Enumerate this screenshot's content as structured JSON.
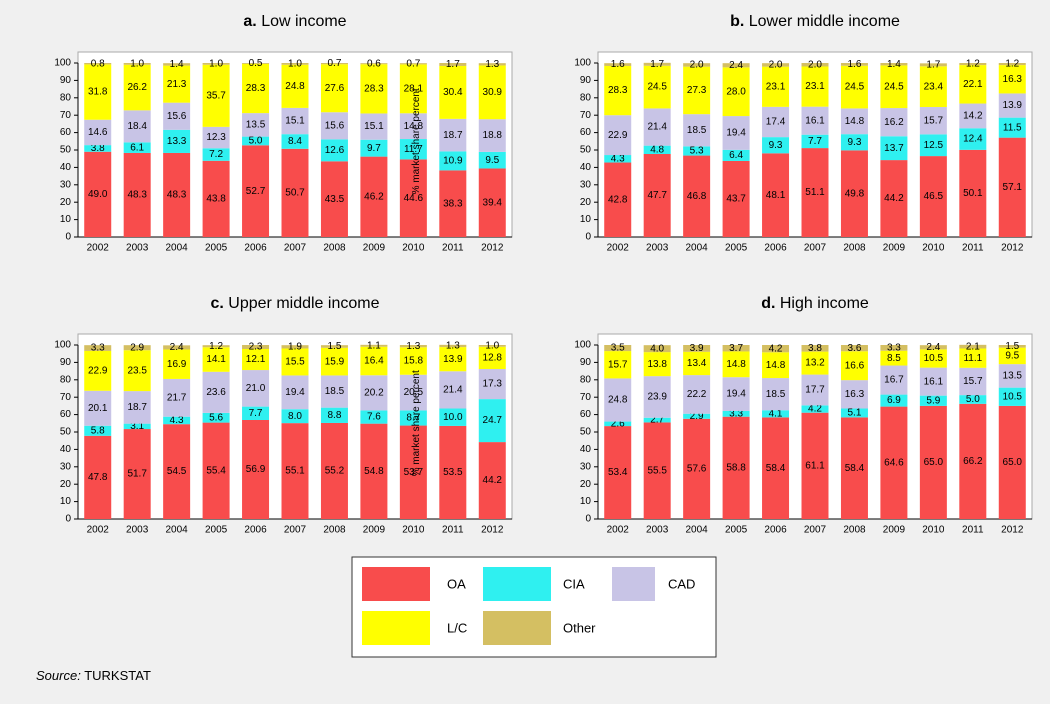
{
  "chart_data": [
    {
      "type": "stacked_bar",
      "panel": "a.",
      "title": "Low income",
      "ylabel": "% market share percent",
      "categories": [
        "2002",
        "2003",
        "2004",
        "2005",
        "2006",
        "2007",
        "2008",
        "2009",
        "2010",
        "2011",
        "2012"
      ],
      "ylim": [
        0,
        100
      ],
      "yticks": [
        0,
        10,
        20,
        30,
        40,
        50,
        60,
        70,
        80,
        90,
        100
      ],
      "series": [
        {
          "name": "OA",
          "color": "#f84c4c",
          "values": [
            49.0,
            48.3,
            48.3,
            43.8,
            52.7,
            50.7,
            43.5,
            46.2,
            44.6,
            38.3,
            39.4
          ],
          "value_labels": [
            "49.0",
            "48.3",
            "48.3",
            "43.8",
            "52.7",
            "50.7",
            "43.5",
            "46.2",
            "44.6",
            "38.3",
            "39.4"
          ]
        },
        {
          "name": "CIA",
          "color": "#2ff0f0",
          "values": [
            3.8,
            6.1,
            13.3,
            7.2,
            5.0,
            8.4,
            12.6,
            9.7,
            11.7,
            10.9,
            9.5
          ],
          "value_labels": [
            "3.8",
            "6.1",
            "13.3",
            "7.2",
            "5.0",
            "8.4",
            "12.6",
            "9.7",
            "11.7",
            "10.9",
            "9.5"
          ]
        },
        {
          "name": "CAD",
          "color": "#c8c4e6",
          "values": [
            14.6,
            18.4,
            15.6,
            12.3,
            13.5,
            15.1,
            15.6,
            15.1,
            14.8,
            18.7,
            18.8
          ],
          "value_labels": [
            "14.6",
            "18.4",
            "15.6",
            "12.3",
            "13.5",
            "15.1",
            "15.6",
            "15.1",
            "14.8",
            "18.7",
            "18.8"
          ]
        },
        {
          "name": "L/C",
          "color": "#ffff00",
          "values": [
            31.8,
            26.2,
            21.3,
            35.7,
            28.3,
            24.8,
            27.6,
            28.3,
            28.1,
            30.4,
            30.9
          ],
          "value_labels": [
            "31.8",
            "26.2",
            "21.3",
            "35.7",
            "28.3",
            "24.8",
            "27.6",
            "28.3",
            "28.1",
            "30.4",
            "30.9"
          ]
        },
        {
          "name": "Other",
          "color": "#d4bf62",
          "values": [
            0.8,
            1.0,
            1.4,
            1.0,
            0.5,
            1.0,
            0.7,
            0.6,
            0.7,
            1.7,
            1.3
          ],
          "value_labels": [
            "0.8",
            "1.0",
            "1.4",
            "1.0",
            "0.5",
            "1.0",
            "0.7",
            "0.6",
            "0.7",
            "1.7",
            "1.3"
          ]
        }
      ]
    },
    {
      "type": "stacked_bar",
      "panel": "b.",
      "title": "Lower middle income",
      "categories": [
        "2002",
        "2003",
        "2004",
        "2005",
        "2006",
        "2007",
        "2008",
        "2009",
        "2010",
        "2011",
        "2012"
      ],
      "ylim": [
        0,
        100
      ],
      "yticks": [
        0,
        10,
        20,
        30,
        40,
        50,
        60,
        70,
        80,
        90,
        100
      ],
      "series": [
        {
          "name": "OA",
          "color": "#f84c4c",
          "values": [
            42.8,
            47.7,
            46.8,
            43.7,
            48.1,
            51.1,
            49.8,
            44.2,
            46.5,
            50.1,
            57.1
          ],
          "value_labels": [
            "42.8",
            "47.7",
            "46.8",
            "43.7",
            "48.1",
            "51.1",
            "49.8",
            "44.2",
            "46.5",
            "50.1",
            "57.1"
          ]
        },
        {
          "name": "CIA",
          "color": "#2ff0f0",
          "values": [
            4.3,
            4.8,
            5.3,
            6.4,
            9.3,
            7.7,
            9.3,
            13.7,
            12.5,
            12.4,
            11.5
          ],
          "value_labels": [
            "4.3",
            "4.8",
            "5.3",
            "6.4",
            "9.3",
            "7.7",
            "9.3",
            "13.7",
            "12.5",
            "12.4",
            "11.5"
          ]
        },
        {
          "name": "CAD",
          "color": "#c8c4e6",
          "values": [
            22.9,
            21.4,
            18.5,
            19.4,
            17.4,
            16.1,
            14.8,
            16.2,
            15.7,
            14.2,
            13.9
          ],
          "value_labels": [
            "22.9",
            "21.4",
            "18.5",
            "19.4",
            "17.4",
            "16.1",
            "14.8",
            "16.2",
            "15.7",
            "14.2",
            "13.9"
          ]
        },
        {
          "name": "L/C",
          "color": "#ffff00",
          "values": [
            28.3,
            24.5,
            27.3,
            28.0,
            23.1,
            23.1,
            24.5,
            24.5,
            23.4,
            22.1,
            16.3
          ],
          "value_labels": [
            "28.3",
            "24.5",
            "27.3",
            "28.0",
            "23.1",
            "23.1",
            "24.5",
            "24.5",
            "23.4",
            "22.1",
            "16.3"
          ]
        },
        {
          "name": "Other",
          "color": "#d4bf62",
          "values": [
            1.6,
            1.7,
            2.0,
            2.4,
            2.0,
            2.0,
            1.6,
            1.4,
            1.7,
            1.2,
            1.2
          ],
          "value_labels": [
            "1.6",
            "1.7",
            "2.0",
            "2.4",
            "2.0",
            "2.0",
            "1.6",
            "1.4",
            "1.7",
            "1.2",
            "1.2"
          ]
        }
      ]
    },
    {
      "type": "stacked_bar",
      "panel": "c.",
      "title": "Upper middle income",
      "ylabel": "% market share percent",
      "categories": [
        "2002",
        "2003",
        "2004",
        "2005",
        "2006",
        "2007",
        "2008",
        "2009",
        "2010",
        "2011",
        "2012"
      ],
      "ylim": [
        0,
        100
      ],
      "yticks": [
        0,
        10,
        20,
        30,
        40,
        50,
        60,
        70,
        80,
        90,
        100
      ],
      "series": [
        {
          "name": "OA",
          "color": "#f84c4c",
          "values": [
            47.8,
            51.7,
            54.5,
            55.4,
            56.9,
            55.1,
            55.2,
            54.8,
            53.7,
            53.5,
            44.2
          ],
          "value_labels": [
            "47.8",
            "51.7",
            "54.5",
            "55.4",
            "56.9",
            "55.1",
            "55.2",
            "54.8",
            "53.7",
            "53.5",
            "44.2"
          ]
        },
        {
          "name": "CIA",
          "color": "#2ff0f0",
          "values": [
            5.8,
            3.1,
            4.3,
            5.6,
            7.7,
            8.0,
            8.8,
            7.6,
            8.7,
            10.0,
            24.7
          ],
          "value_labels": [
            "5.8",
            "3.1",
            "4.3",
            "5.6",
            "7.7",
            "8.0",
            "8.8",
            "7.6",
            "8.7",
            "10.0",
            "24.7"
          ]
        },
        {
          "name": "CAD",
          "color": "#c8c4e6",
          "values": [
            20.1,
            18.7,
            21.7,
            23.6,
            21.0,
            19.4,
            18.5,
            20.2,
            20.5,
            21.4,
            17.3
          ],
          "value_labels": [
            "20.1",
            "18.7",
            "21.7",
            "23.6",
            "21.0",
            "19.4",
            "18.5",
            "20.2",
            "20.5",
            "21.4",
            "17.3"
          ]
        },
        {
          "name": "L/C",
          "color": "#ffff00",
          "values": [
            22.9,
            23.5,
            16.9,
            14.1,
            12.1,
            15.5,
            15.9,
            16.4,
            15.8,
            13.9,
            12.8
          ],
          "value_labels": [
            "22.9",
            "23.5",
            "16.9",
            "14.1",
            "12.1",
            "15.5",
            "15.9",
            "16.4",
            "15.8",
            "13.9",
            "12.8"
          ]
        },
        {
          "name": "Other",
          "color": "#d4bf62",
          "values": [
            3.3,
            2.9,
            2.4,
            1.2,
            2.3,
            1.9,
            1.5,
            1.1,
            1.3,
            1.3,
            1.0
          ],
          "value_labels": [
            "3.3",
            "2.9",
            "2.4",
            "1.2",
            "2.3",
            "1.9",
            "1.5",
            "1.1",
            "1.3",
            "1.3",
            "1.0"
          ]
        }
      ]
    },
    {
      "type": "stacked_bar",
      "panel": "d.",
      "title": "High income",
      "categories": [
        "2002",
        "2003",
        "2004",
        "2005",
        "2006",
        "2007",
        "2008",
        "2009",
        "2010",
        "2011",
        "2012"
      ],
      "ylim": [
        0,
        100
      ],
      "yticks": [
        0,
        10,
        20,
        30,
        40,
        50,
        60,
        70,
        80,
        90,
        100
      ],
      "series": [
        {
          "name": "OA",
          "color": "#f84c4c",
          "values": [
            53.4,
            55.5,
            57.6,
            58.8,
            58.4,
            61.1,
            58.4,
            64.6,
            65.0,
            66.2,
            65.0
          ],
          "value_labels": [
            "53.4",
            "55.5",
            "57.6",
            "58.8",
            "58.4",
            "61.1",
            "58.4",
            "64.6",
            "65.0",
            "66.2",
            "65.0"
          ]
        },
        {
          "name": "CIA",
          "color": "#2ff0f0",
          "values": [
            2.6,
            2.7,
            2.9,
            3.3,
            4.1,
            4.2,
            5.1,
            6.9,
            5.9,
            5.0,
            10.5
          ],
          "value_labels": [
            "2.6",
            "2.7",
            "2.9",
            "3.3",
            "4.1",
            "4.2",
            "5.1",
            "6.9",
            "5.9",
            "5.0",
            "10.5"
          ]
        },
        {
          "name": "CAD",
          "color": "#c8c4e6",
          "values": [
            24.8,
            23.9,
            22.2,
            19.4,
            18.5,
            17.7,
            16.3,
            16.7,
            16.1,
            15.7,
            13.5
          ],
          "value_labels": [
            "24.8",
            "23.9",
            "22.2",
            "19.4",
            "18.5",
            "17.7",
            "16.3",
            "16.7",
            "16.1",
            "15.7",
            "13.5"
          ]
        },
        {
          "name": "L/C",
          "color": "#ffff00",
          "values": [
            15.7,
            13.8,
            13.4,
            14.8,
            14.8,
            13.2,
            16.6,
            8.5,
            10.5,
            11.1,
            9.5
          ],
          "value_labels": [
            "15.7",
            "13.8",
            "13.4",
            "14.8",
            "14.8",
            "13.2",
            "16.6",
            "8.5",
            "10.5",
            "11.1",
            "9.5"
          ]
        },
        {
          "name": "Other",
          "color": "#d4bf62",
          "values": [
            3.5,
            4.0,
            3.9,
            3.7,
            4.2,
            3.8,
            3.6,
            3.3,
            2.4,
            2.1,
            1.5
          ],
          "value_labels": [
            "3.5",
            "4.0",
            "3.9",
            "3.7",
            "4.2",
            "3.8",
            "3.6",
            "3.3",
            "2.4",
            "2.1",
            "1.5"
          ]
        }
      ]
    }
  ],
  "source_label": "Source:",
  "source": "TURKSTAT"
}
